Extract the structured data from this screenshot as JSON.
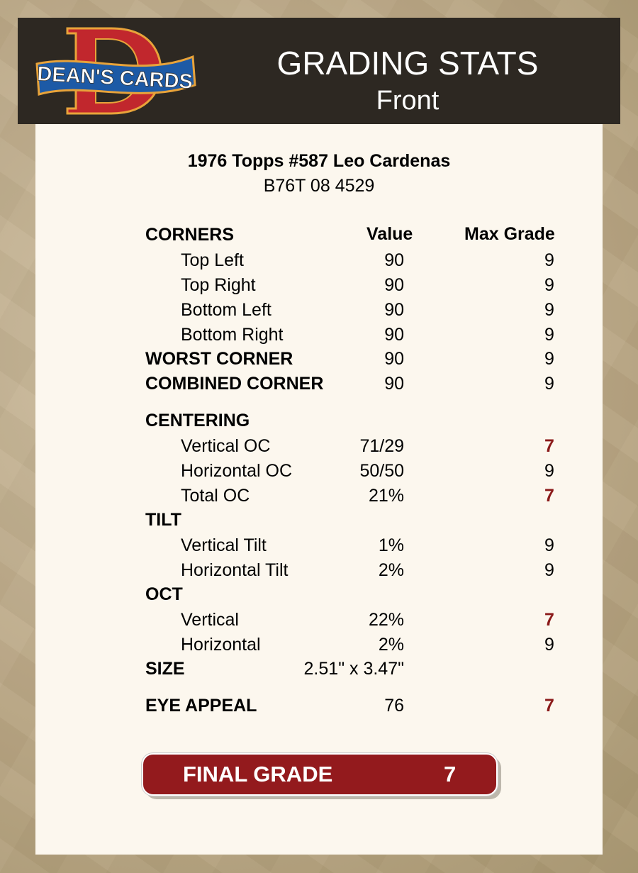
{
  "header": {
    "logo_text": "DEAN'S CARDS",
    "title": "GRADING STATS",
    "subtitle": "Front"
  },
  "card": {
    "name": "1976 Topps #587 Leo Cardenas",
    "id": "B76T 08 4529"
  },
  "columns": {
    "value": "Value",
    "max_grade": "Max Grade"
  },
  "rows": [
    {
      "kind": "section",
      "label": "CORNERS"
    },
    {
      "kind": "sub",
      "label": "Top Left",
      "value": "90",
      "grade": "9"
    },
    {
      "kind": "sub",
      "label": "Top Right",
      "value": "90",
      "grade": "9"
    },
    {
      "kind": "sub",
      "label": "Bottom Left",
      "value": "90",
      "grade": "9"
    },
    {
      "kind": "sub",
      "label": "Bottom Right",
      "value": "90",
      "grade": "9"
    },
    {
      "kind": "section",
      "label": "WORST CORNER",
      "value": "90",
      "grade": "9"
    },
    {
      "kind": "section",
      "label": "COMBINED CORNER",
      "value": "90",
      "grade": "9"
    },
    {
      "kind": "section",
      "label": "CENTERING"
    },
    {
      "kind": "sub",
      "label": "Vertical OC",
      "value": "71/29",
      "grade": "7",
      "flag": true
    },
    {
      "kind": "sub",
      "label": "Horizontal OC",
      "value": "50/50",
      "grade": "9"
    },
    {
      "kind": "sub",
      "label": "Total OC",
      "value": "21%",
      "grade": "7",
      "flag": true
    },
    {
      "kind": "section",
      "label": "TILT"
    },
    {
      "kind": "sub",
      "label": "Vertical Tilt",
      "value": "1%",
      "grade": "9"
    },
    {
      "kind": "sub",
      "label": "Horizontal Tilt",
      "value": "2%",
      "grade": "9"
    },
    {
      "kind": "section",
      "label": "OCT"
    },
    {
      "kind": "sub",
      "label": "Vertical",
      "value": "22%",
      "grade": "7",
      "flag": true
    },
    {
      "kind": "sub",
      "label": "Horizontal",
      "value": "2%",
      "grade": "9"
    },
    {
      "kind": "section",
      "label": "SIZE",
      "value": "2.51\" x 3.47\""
    },
    {
      "kind": "section",
      "label": "EYE APPEAL",
      "value": "76",
      "grade": "7",
      "flag": true
    }
  ],
  "final": {
    "label": "FINAL GRADE",
    "value": "7"
  },
  "colors": {
    "header_bg": "#2d2822",
    "panel_bg": "#fcf7ee",
    "accent_red": "#931a1d",
    "flag_red": "#8b1a1a"
  }
}
